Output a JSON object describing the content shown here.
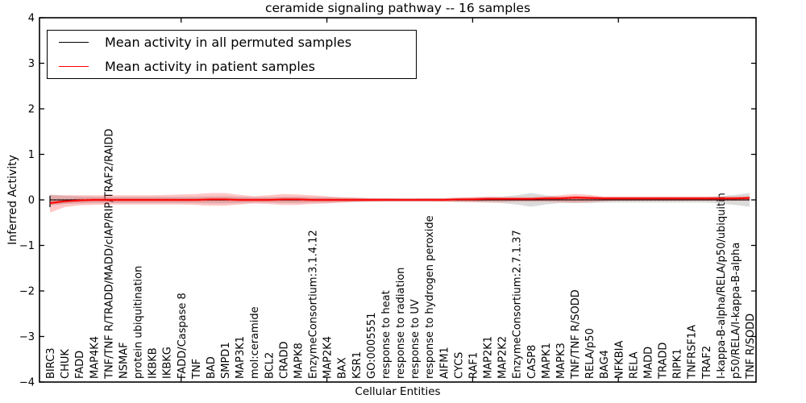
{
  "chart_data": {
    "type": "line",
    "title": "ceramide signaling pathway -- 16 samples",
    "xlabel": "Cellular Entities",
    "ylabel": "Inferred Activity",
    "ylim": [
      -4,
      4
    ],
    "yticks": [
      4,
      3,
      2,
      1,
      0,
      -1,
      -2,
      -3,
      -4
    ],
    "xticks_unlabeled_values": [
      10,
      20,
      30,
      40
    ],
    "grid": false,
    "legend_position": "upper left",
    "zero_line_style": "dotted",
    "categories": [
      "BIRC3",
      "CHUK",
      "FADD",
      "MAP4K4",
      "TNF/TNF R/TRADD/MADD/cIAP/RIP/TRAF2/RAIDD",
      "NSMAF",
      "protein ubiquitination",
      "IKBKB",
      "IKBKG",
      "FADD/Caspase 8",
      "TNF",
      "BAD",
      "SMPD1",
      "MAP3K1",
      "mol:ceramide",
      "BCL2",
      "CRADD",
      "MAPK8",
      "EnzymeConsortium:3.1.4.12",
      "MAP2K4",
      "BAX",
      "KSR1",
      "GO:0005551",
      "response to heat",
      "response to radiation",
      "response to UV",
      "response to hydrogen peroxide",
      "AIFM1",
      "CYCS",
      "RAF1",
      "MAP2K1",
      "MAP2K2",
      "EnzymeConsortium:2.7.1.37",
      "CASP8",
      "MAPK1",
      "MAPK3",
      "TNF/TNF R/SODD",
      "RELA/p50",
      "BAG4",
      "NFKBIA",
      "RELA",
      "MADD",
      "TRADD",
      "RIPK1",
      "TNFRSF1A",
      "TRAF2",
      "I-kappa-B-alpha/RELA/p50/ubiquitin",
      "p50/RELA/I-kappa-B-alpha",
      "TNF R/SODD"
    ],
    "series": [
      {
        "name": "Mean activity in all permuted samples",
        "color": "#000000",
        "values": [
          0,
          0,
          0,
          0,
          0,
          0,
          0,
          0,
          0,
          0,
          0,
          0,
          0,
          0,
          0,
          0,
          0,
          0,
          0,
          0,
          0,
          0,
          0,
          0,
          0,
          0,
          0,
          0,
          0,
          0,
          0,
          0,
          0,
          0,
          0,
          0,
          0,
          0,
          0,
          0,
          0,
          0,
          0,
          0,
          0,
          0,
          0,
          0,
          0
        ]
      },
      {
        "name": "Mean activity in patient samples",
        "color": "#ff0000",
        "values": [
          -0.07,
          -0.03,
          -0.01,
          0,
          0,
          0,
          0,
          0,
          0,
          0,
          0,
          0.01,
          0.01,
          0,
          0,
          0,
          0.01,
          0.01,
          0,
          0,
          0,
          0,
          0,
          0,
          0,
          0,
          0,
          0,
          0.01,
          0.01,
          0.02,
          0.02,
          0.02,
          0.02,
          0.03,
          0.03,
          0.05,
          0.04,
          0.03,
          0.03,
          0.03,
          0.03,
          0.03,
          0.03,
          0.03,
          0.03,
          0.03,
          0.03,
          0.04
        ]
      }
    ],
    "bands": [
      {
        "name": "permuted-samples-spread",
        "color": "#999999",
        "opacity": 0.35,
        "lower": [
          -0.12,
          -0.09,
          -0.08,
          -0.07,
          -0.07,
          -0.07,
          -0.07,
          -0.07,
          -0.07,
          -0.07,
          -0.07,
          -0.08,
          -0.08,
          -0.07,
          -0.06,
          -0.06,
          -0.07,
          -0.07,
          -0.06,
          -0.06,
          -0.05,
          -0.05,
          -0.04,
          -0.04,
          -0.04,
          -0.04,
          -0.04,
          -0.04,
          -0.05,
          -0.05,
          -0.06,
          -0.07,
          -0.1,
          -0.15,
          -0.1,
          -0.07,
          -0.07,
          -0.07,
          -0.06,
          -0.06,
          -0.06,
          -0.06,
          -0.06,
          -0.06,
          -0.06,
          -0.06,
          -0.08,
          -0.11,
          -0.15
        ],
        "upper": [
          0.12,
          0.09,
          0.08,
          0.07,
          0.07,
          0.07,
          0.07,
          0.07,
          0.07,
          0.07,
          0.07,
          0.08,
          0.08,
          0.07,
          0.06,
          0.06,
          0.07,
          0.07,
          0.06,
          0.06,
          0.05,
          0.05,
          0.04,
          0.04,
          0.04,
          0.04,
          0.04,
          0.04,
          0.05,
          0.05,
          0.06,
          0.07,
          0.1,
          0.15,
          0.1,
          0.07,
          0.07,
          0.07,
          0.06,
          0.06,
          0.06,
          0.06,
          0.06,
          0.06,
          0.06,
          0.06,
          0.08,
          0.11,
          0.15
        ]
      },
      {
        "name": "patient-samples-spread",
        "color": "#ff0000",
        "opacity": 0.22,
        "lower": [
          -0.28,
          -0.16,
          -0.12,
          -0.11,
          -0.1,
          -0.1,
          -0.1,
          -0.1,
          -0.1,
          -0.1,
          -0.11,
          -0.13,
          -0.13,
          -0.1,
          -0.08,
          -0.09,
          -0.11,
          -0.11,
          -0.09,
          -0.08,
          -0.06,
          -0.04,
          -0.03,
          -0.02,
          -0.02,
          -0.02,
          -0.02,
          -0.03,
          -0.04,
          -0.05,
          -0.05,
          -0.05,
          -0.04,
          -0.04,
          -0.04,
          -0.05,
          -0.06,
          -0.05,
          -0.03,
          -0.02,
          -0.02,
          -0.02,
          -0.02,
          -0.02,
          -0.02,
          -0.02,
          -0.02,
          -0.02,
          -0.02
        ],
        "upper": [
          0.1,
          0.1,
          0.1,
          0.1,
          0.1,
          0.1,
          0.1,
          0.1,
          0.11,
          0.12,
          0.13,
          0.15,
          0.15,
          0.11,
          0.08,
          0.1,
          0.13,
          0.12,
          0.1,
          0.08,
          0.06,
          0.05,
          0.03,
          0.03,
          0.02,
          0.02,
          0.03,
          0.03,
          0.04,
          0.06,
          0.07,
          0.06,
          0.06,
          0.06,
          0.07,
          0.1,
          0.13,
          0.11,
          0.07,
          0.07,
          0.07,
          0.07,
          0.07,
          0.07,
          0.07,
          0.07,
          0.07,
          0.07,
          0.08
        ]
      }
    ],
    "first_point_errorbar": {
      "index": 0,
      "low": -0.16,
      "high": 0.09
    }
  },
  "legend": {
    "entries": [
      {
        "label": "Mean activity in all permuted samples",
        "color": "#000000"
      },
      {
        "label": "Mean activity in patient samples",
        "color": "#ff0000"
      }
    ]
  }
}
